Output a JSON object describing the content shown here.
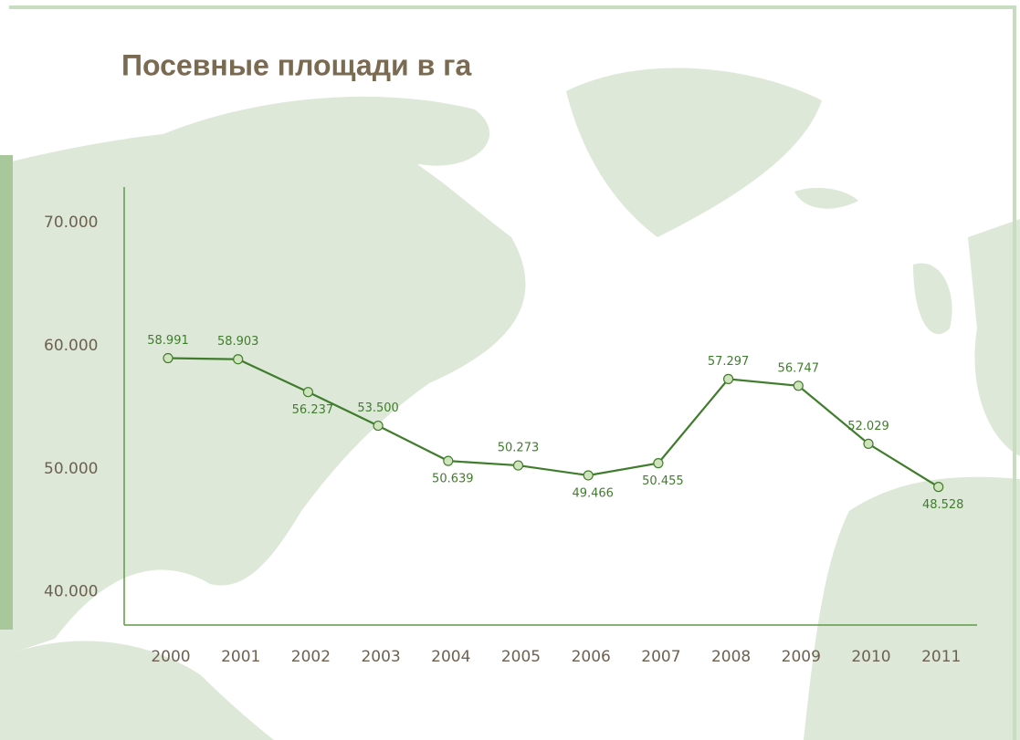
{
  "chart_data": {
    "type": "line",
    "title": "Посевные площади в га",
    "categories": [
      "2000",
      "2001",
      "2002",
      "2003",
      "2004",
      "2005",
      "2006",
      "2007",
      "2008",
      "2009",
      "2010",
      "2011"
    ],
    "series": [
      {
        "color": "#3f7d2c",
        "values": [
          58991,
          58903,
          56237,
          53500,
          50639,
          50273,
          49466,
          50455,
          57297,
          56747,
          52029,
          48528
        ],
        "value_labels": [
          "58.991",
          "58.903",
          "56.237",
          "53.500",
          "50.639",
          "50.273",
          "49.466",
          "50.455",
          "57.297",
          "56.747",
          "52.029",
          "48.528"
        ]
      }
    ],
    "ylim": [
      37300,
      72900
    ],
    "yticks": [
      {
        "value": 40000,
        "label": "40.000"
      },
      {
        "value": 50000,
        "label": "50.000"
      },
      {
        "value": 60000,
        "label": "60.000"
      },
      {
        "value": 70000,
        "label": "70.000"
      }
    ]
  }
}
